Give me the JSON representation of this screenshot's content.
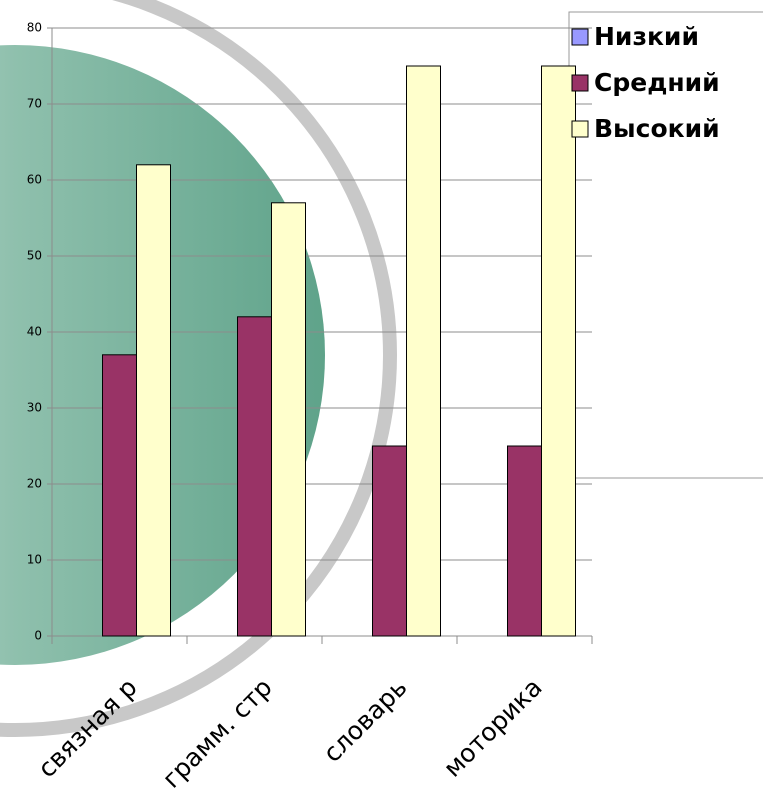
{
  "chart_data": {
    "type": "bar",
    "categories": [
      "связная р",
      "грамм. стр",
      "словарь",
      "моторика"
    ],
    "series": [
      {
        "name": "Низкий",
        "color": "#9999ff",
        "values": [
          0,
          0,
          0,
          0
        ]
      },
      {
        "name": "Средний",
        "color": "#993366",
        "values": [
          37,
          42,
          25,
          25
        ]
      },
      {
        "name": "Высокий",
        "color": "#ffffcc",
        "values": [
          62,
          57,
          75,
          75
        ]
      }
    ],
    "ylim": [
      0,
      80
    ],
    "yticks": [
      0,
      10,
      20,
      30,
      40,
      50,
      60,
      70,
      80
    ],
    "grid": true
  }
}
